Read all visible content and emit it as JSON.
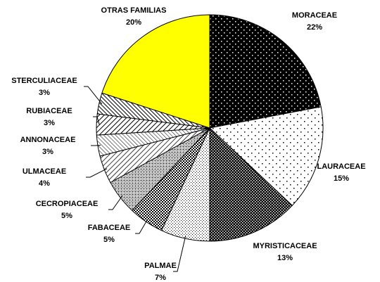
{
  "chart_data": {
    "type": "pie",
    "categories": [
      "MORACEAE",
      "LAURACEAE",
      "MYRISTICACEAE",
      "PALMAE",
      "FABACEAE",
      "CECROPIACEAE",
      "ULMACEAE",
      "ANNONACEAE",
      "RUBIACEAE",
      "STERCULIACEAE",
      "OTRAS FAMILIAS"
    ],
    "values": [
      22,
      15,
      13,
      7,
      5,
      5,
      4,
      3,
      3,
      3,
      20
    ],
    "value_labels": [
      "22%",
      "15%",
      "13%",
      "7%",
      "5%",
      "5%",
      "4%",
      "3%",
      "3%",
      "3%",
      "20%"
    ]
  }
}
